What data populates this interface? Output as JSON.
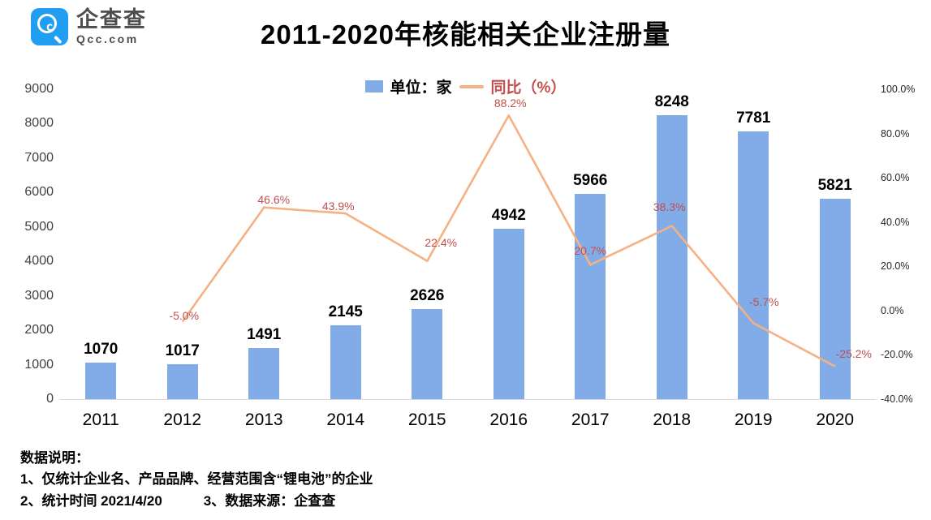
{
  "logo": {
    "name": "企查查",
    "domain": "Qcc.com"
  },
  "title": "2011-2020年核能相关企业注册量",
  "legend": {
    "bar": "单位：家",
    "line": "同比（%）"
  },
  "chart_data": {
    "type": "combo-bar-line",
    "categories": [
      "2011",
      "2012",
      "2013",
      "2014",
      "2015",
      "2016",
      "2017",
      "2018",
      "2019",
      "2020"
    ],
    "series": [
      {
        "name": "单位：家",
        "type": "bar",
        "axis": "left",
        "values": [
          1070,
          1017,
          1491,
          2145,
          2626,
          4942,
          5966,
          8248,
          7781,
          5821
        ]
      },
      {
        "name": "同比（%）",
        "type": "line",
        "axis": "right",
        "values": [
          null,
          -5.0,
          46.6,
          43.9,
          22.4,
          88.2,
          20.7,
          38.3,
          -5.7,
          -25.2
        ],
        "labels": [
          null,
          "-5.0%",
          "46.6%",
          "43.9%",
          "22.4%",
          "88.2%",
          "20.7%",
          "38.3%",
          "-5.7%",
          "-25.2%"
        ]
      }
    ],
    "left_axis": {
      "min": 0,
      "max": 9000,
      "ticks": [
        "0",
        "1000",
        "2000",
        "3000",
        "4000",
        "5000",
        "6000",
        "7000",
        "8000",
        "9000"
      ]
    },
    "right_axis": {
      "min": -40,
      "max": 100,
      "ticks": [
        "-40.0%",
        "-20.0%",
        "0.0%",
        "20.0%",
        "40.0%",
        "60.0%",
        "80.0%",
        "100.0%"
      ]
    },
    "colors": {
      "bar": "#82ACE8",
      "line": "#F5B183",
      "percent_label": "#C0504D"
    },
    "grid": false,
    "legend_position": "top-center"
  },
  "notes": {
    "heading": "数据说明：",
    "line1": "1、仅统计企业名、产品品牌、经营范围含“锂电池”的企业",
    "line2": "2、统计时间 2021/4/20　　　3、数据来源：企查查"
  }
}
